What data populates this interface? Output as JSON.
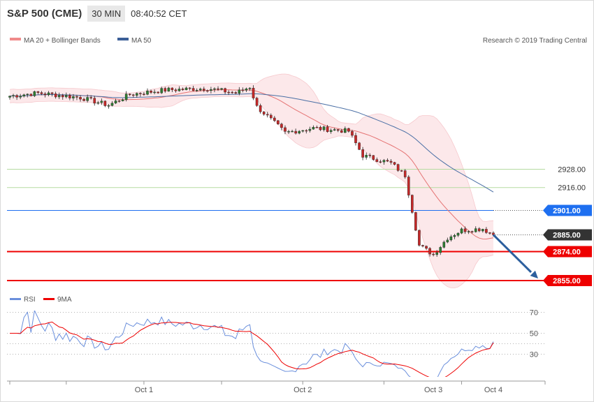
{
  "header": {
    "instrument": "S&P 500 (CME)",
    "timeframe": "30 MIN",
    "time": "08:40:52 CET"
  },
  "legend": {
    "ma20": "MA 20 + Bollinger Bands",
    "ma50": "MA 50",
    "rsi": "RSI",
    "ma9": "9MA"
  },
  "copyright": "Research © 2019 Trading Central",
  "colors": {
    "up": "#2e7d32",
    "down": "#c62828",
    "bb_fill": "#fce8ea",
    "ma20": "#e57373",
    "ma50": "#4a6fa5",
    "resist": "#b5dba0",
    "support": "#ee0000",
    "blue_level": "#1e6ff0",
    "rsi": "#6a8fdc",
    "rsi_ma": "#ee0000",
    "arrow": "#2c5f9e"
  },
  "chart_data": [
    {
      "type": "candlestick",
      "title": "S&P 500 (CME)",
      "timeframe": "30 MIN",
      "x_labels": [
        "Oct 1",
        "Oct 2",
        "Oct 3",
        "Oct 4"
      ],
      "ylim": [
        2850,
        2990
      ],
      "levels": [
        {
          "value": 2928.0,
          "label": "2928.00",
          "kind": "resistance"
        },
        {
          "value": 2916.0,
          "label": "2916.00",
          "kind": "resistance"
        },
        {
          "value": 2901.0,
          "label": "2901.00",
          "kind": "ma50"
        },
        {
          "value": 2885.0,
          "label": "2885.00",
          "kind": "last"
        },
        {
          "value": 2874.0,
          "label": "2874.00",
          "kind": "support"
        },
        {
          "value": 2855.0,
          "label": "2855.00",
          "kind": "support"
        }
      ],
      "anchors": {
        "start": 2976,
        "day1_high": 2981,
        "day2_open": 2983,
        "day2_low": 2952,
        "day3_low": 2874,
        "last": 2885
      },
      "forecast_target": 2855.0
    },
    {
      "type": "line",
      "series": [
        {
          "name": "RSI"
        },
        {
          "name": "9MA"
        }
      ],
      "y_ticks": [
        70,
        50,
        30
      ],
      "ylim": [
        15,
        75
      ],
      "guides": [
        70,
        50,
        30,
        40
      ],
      "rsi_last": 42,
      "ma9_last": 41
    }
  ]
}
